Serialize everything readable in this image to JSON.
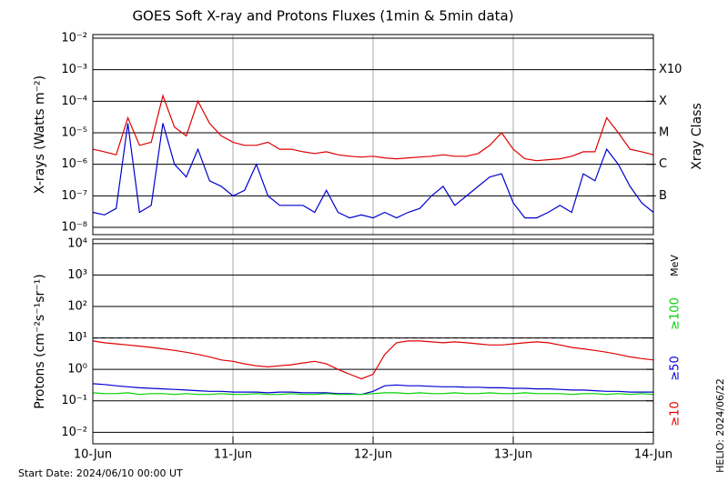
{
  "title": "GOES Soft X-ray and Protons Fluxes   (1min & 5min data)",
  "footer": {
    "start_date": "Start Date: 2024/06/10 00:00 UT",
    "helio": "HELIO: 2024/06/22"
  },
  "chart_data": [
    {
      "type": "line",
      "y_label": "X-rays (Watts m⁻²)",
      "y2_label": "Xray Class",
      "log_y": true,
      "grid": true,
      "x": [
        0,
        2,
        4,
        6,
        8,
        10,
        12,
        14,
        16,
        18,
        20,
        22,
        24,
        26,
        28,
        30,
        32,
        34,
        36,
        38,
        40,
        42,
        44,
        46,
        48,
        50,
        52,
        54,
        56,
        58,
        60,
        62,
        64,
        66,
        68,
        70,
        72,
        74,
        76,
        78,
        80,
        82,
        84,
        86,
        88,
        90,
        92,
        94,
        96
      ],
      "xlim": [
        0,
        96
      ],
      "ylim": [
        5.9e-09,
        0.013
      ],
      "yticks": [
        {
          "value": 1e-08,
          "label": "10⁻⁸"
        },
        {
          "value": 1e-07,
          "label": "10⁻⁷"
        },
        {
          "value": 1e-06,
          "label": "10⁻⁶"
        },
        {
          "value": 1e-05,
          "label": "10⁻⁵"
        },
        {
          "value": 0.0001,
          "label": "10⁻⁴"
        },
        {
          "value": 0.001,
          "label": "10⁻³"
        },
        {
          "value": 0.01,
          "label": "10⁻²"
        }
      ],
      "class_labels": [
        {
          "value": 0.001,
          "label": "X10"
        },
        {
          "value": 0.0001,
          "label": "X"
        },
        {
          "value": 1e-05,
          "label": "M"
        },
        {
          "value": 1e-06,
          "label": "C"
        },
        {
          "value": 1e-07,
          "label": "B"
        }
      ],
      "series": [
        {
          "color": "#e00000",
          "values": [
            3e-06,
            2.5e-06,
            2e-06,
            3e-05,
            4e-06,
            5e-06,
            0.00015,
            1.5e-05,
            8e-06,
            0.0001,
            2e-05,
            8e-06,
            5e-06,
            4e-06,
            4e-06,
            5e-06,
            3e-06,
            3e-06,
            2.5e-06,
            2.2e-06,
            2.5e-06,
            2e-06,
            1.8e-06,
            1.7e-06,
            1.8e-06,
            1.6e-06,
            1.5e-06,
            1.6e-06,
            1.7e-06,
            1.8e-06,
            2e-06,
            1.8e-06,
            1.8e-06,
            2.2e-06,
            4e-06,
            1e-05,
            3e-06,
            1.5e-06,
            1.3e-06,
            1.4e-06,
            1.5e-06,
            1.8e-06,
            2.5e-06,
            2.5e-06,
            3e-05,
            1e-05,
            3e-06,
            2.5e-06,
            2e-06
          ]
        },
        {
          "color": "#0000d0",
          "values": [
            3e-08,
            2.5e-08,
            4e-08,
            2e-05,
            3e-08,
            5e-08,
            2e-05,
            1e-06,
            4e-07,
            3e-06,
            3e-07,
            2e-07,
            1e-07,
            1.5e-07,
            1e-06,
            1e-07,
            5e-08,
            5e-08,
            5e-08,
            3e-08,
            1.5e-07,
            3e-08,
            2e-08,
            2.5e-08,
            2e-08,
            3e-08,
            2e-08,
            3e-08,
            4e-08,
            1e-07,
            2e-07,
            5e-08,
            1e-07,
            2e-07,
            4e-07,
            5e-07,
            6e-08,
            2e-08,
            2e-08,
            3e-08,
            5e-08,
            3e-08,
            5e-07,
            3e-07,
            3e-06,
            1e-06,
            2e-07,
            6e-08,
            3e-08
          ]
        }
      ]
    },
    {
      "type": "line",
      "y_label": "Protons (cm⁻²s⁻¹sr⁻¹)",
      "unit_label": "MeV",
      "log_y": true,
      "grid": true,
      "reference_line": 10,
      "x": [
        0,
        2,
        4,
        6,
        8,
        10,
        12,
        14,
        16,
        18,
        20,
        22,
        24,
        26,
        28,
        30,
        32,
        34,
        36,
        38,
        40,
        42,
        44,
        46,
        48,
        50,
        52,
        54,
        56,
        58,
        60,
        62,
        64,
        66,
        68,
        70,
        72,
        74,
        76,
        78,
        80,
        82,
        84,
        86,
        88,
        90,
        92,
        94,
        96
      ],
      "xlim": [
        0,
        96
      ],
      "xticks": [
        {
          "value": 0,
          "label": "10-Jun"
        },
        {
          "value": 24,
          "label": "11-Jun"
        },
        {
          "value": 48,
          "label": "12-Jun"
        },
        {
          "value": 72,
          "label": "13-Jun"
        },
        {
          "value": 96,
          "label": "14-Jun"
        }
      ],
      "ylim": [
        0.0043,
        13800
      ],
      "yticks": [
        {
          "value": 0.01,
          "label": "10⁻²"
        },
        {
          "value": 0.1,
          "label": "10⁻¹"
        },
        {
          "value": 1,
          "label": "10⁰"
        },
        {
          "value": 10,
          "label": "10¹"
        },
        {
          "value": 100,
          "label": "10²"
        },
        {
          "value": 1000,
          "label": "10³"
        },
        {
          "value": 10000,
          "label": "10⁴"
        }
      ],
      "series": [
        {
          "name": "≥10",
          "color": "#e00000",
          "values": [
            8,
            7,
            6.5,
            6,
            5.5,
            5,
            4.5,
            4,
            3.5,
            3,
            2.5,
            2,
            1.8,
            1.5,
            1.3,
            1.2,
            1.3,
            1.4,
            1.6,
            1.8,
            1.5,
            1,
            0.7,
            0.5,
            0.7,
            3,
            7,
            8,
            8,
            7.5,
            7,
            7.5,
            7,
            6.5,
            6,
            6,
            6.5,
            7,
            7.5,
            7,
            6,
            5,
            4.5,
            4,
            3.5,
            3,
            2.5,
            2.2,
            2
          ]
        },
        {
          "name": "≥50",
          "color": "#0000d0",
          "values": [
            0.35,
            0.33,
            0.3,
            0.28,
            0.26,
            0.25,
            0.24,
            0.23,
            0.22,
            0.21,
            0.2,
            0.2,
            0.19,
            0.19,
            0.19,
            0.18,
            0.19,
            0.19,
            0.18,
            0.18,
            0.18,
            0.17,
            0.17,
            0.16,
            0.2,
            0.3,
            0.32,
            0.3,
            0.3,
            0.29,
            0.28,
            0.28,
            0.27,
            0.27,
            0.26,
            0.26,
            0.25,
            0.25,
            0.24,
            0.24,
            0.23,
            0.22,
            0.22,
            0.21,
            0.2,
            0.2,
            0.19,
            0.19,
            0.19
          ]
        },
        {
          "name": "≥100",
          "color": "#00d000",
          "values": [
            0.18,
            0.17,
            0.17,
            0.18,
            0.16,
            0.17,
            0.17,
            0.16,
            0.17,
            0.16,
            0.16,
            0.17,
            0.16,
            0.16,
            0.17,
            0.16,
            0.16,
            0.17,
            0.16,
            0.16,
            0.17,
            0.16,
            0.16,
            0.16,
            0.17,
            0.18,
            0.18,
            0.17,
            0.18,
            0.17,
            0.17,
            0.18,
            0.17,
            0.17,
            0.18,
            0.17,
            0.17,
            0.18,
            0.17,
            0.17,
            0.17,
            0.16,
            0.17,
            0.17,
            0.16,
            0.17,
            0.16,
            0.17,
            0.16
          ]
        }
      ]
    }
  ]
}
